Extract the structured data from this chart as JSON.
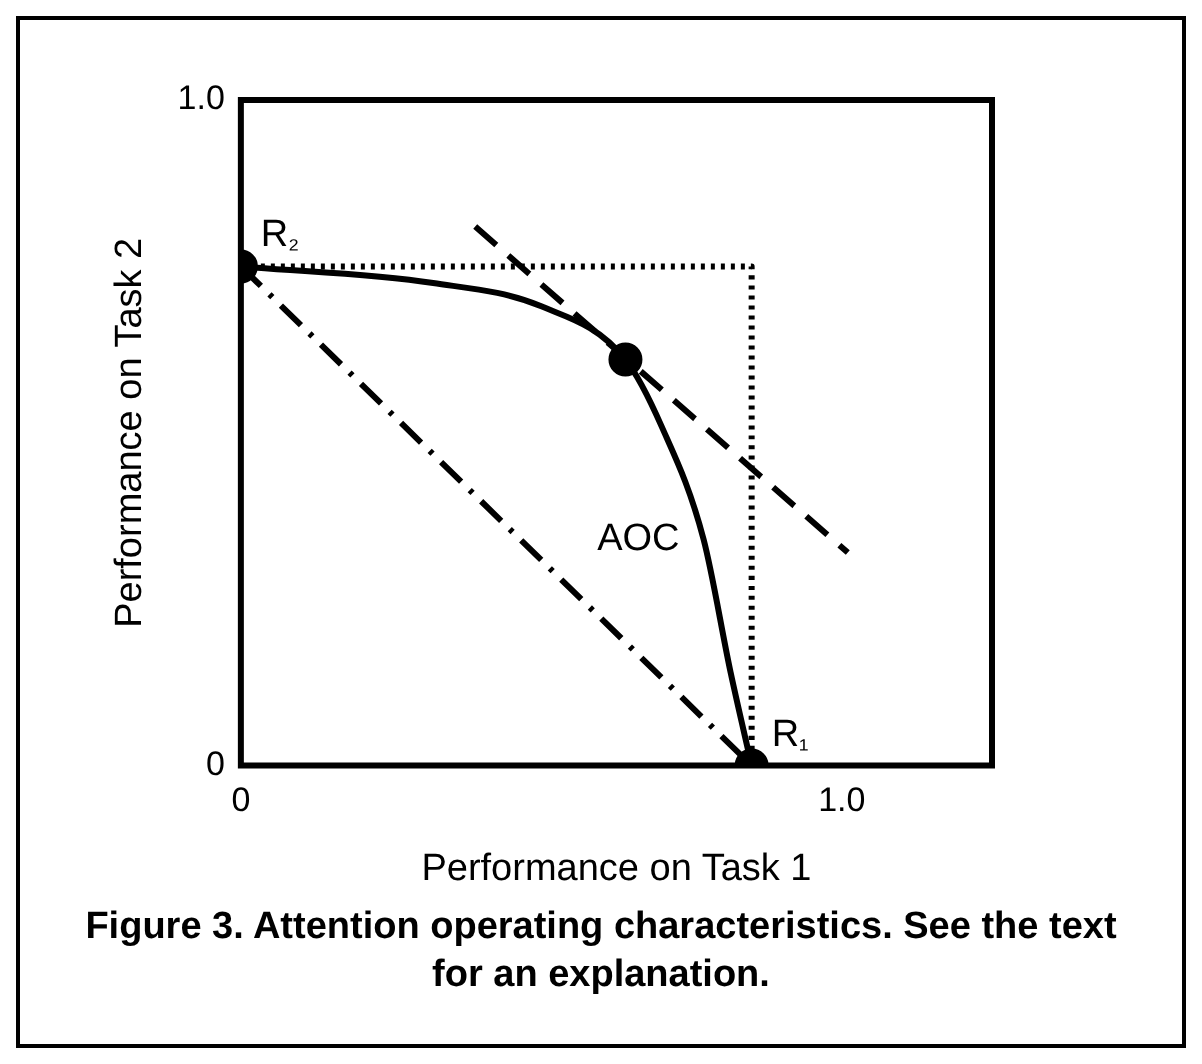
{
  "chart_data": {
    "type": "line",
    "xlabel": "Performance on Task 1",
    "ylabel": "Performance on Task 2",
    "xlim": [
      0,
      1.25
    ],
    "ylim": [
      0,
      1
    ],
    "xticks": [
      0,
      {
        "value": 1,
        "label": "1.0"
      }
    ],
    "yticks": [
      0,
      {
        "value": 1,
        "label": "1.0"
      }
    ],
    "grid": false,
    "legend": false,
    "series": [
      {
        "type": "line",
        "color": "#000000",
        "line_style": "dotted",
        "marker": "none",
        "x": [
          0,
          0.85,
          0.85
        ],
        "values": [
          0.75,
          0.75,
          0
        ]
      },
      {
        "type": "line",
        "color": "#000000",
        "line_style": "dashdot",
        "marker": "none",
        "x": [
          0,
          0.85
        ],
        "values": [
          0.75,
          0
        ]
      },
      {
        "type": "line",
        "color": "#000000",
        "line_style": "dashed",
        "marker": "none",
        "x": [
          0.39,
          1.01
        ],
        "values": [
          0.81,
          0.32
        ]
      },
      {
        "type": "line",
        "name": "AOC",
        "color": "#000000",
        "line_style": "solid",
        "marker": "none",
        "x": [
          0,
          0.32,
          0.5,
          0.64,
          0.7,
          0.77,
          0.815,
          0.85
        ],
        "values": [
          0.75,
          0.725,
          0.69,
          0.61,
          0.51,
          0.34,
          0.14,
          0
        ]
      },
      {
        "type": "scatter",
        "color": "#000000",
        "marker": "circle",
        "x": [
          0,
          0.64,
          0.85
        ],
        "values": [
          0.75,
          0.61,
          0
        ]
      }
    ],
    "annotations": [
      {
        "text": "R₂",
        "x": 0,
        "y": 0.75
      },
      {
        "text": "R₁",
        "x": 0.85,
        "y": 0
      },
      "Figure 3. Attention operating characteristics. See the text for an explanation."
    ]
  }
}
